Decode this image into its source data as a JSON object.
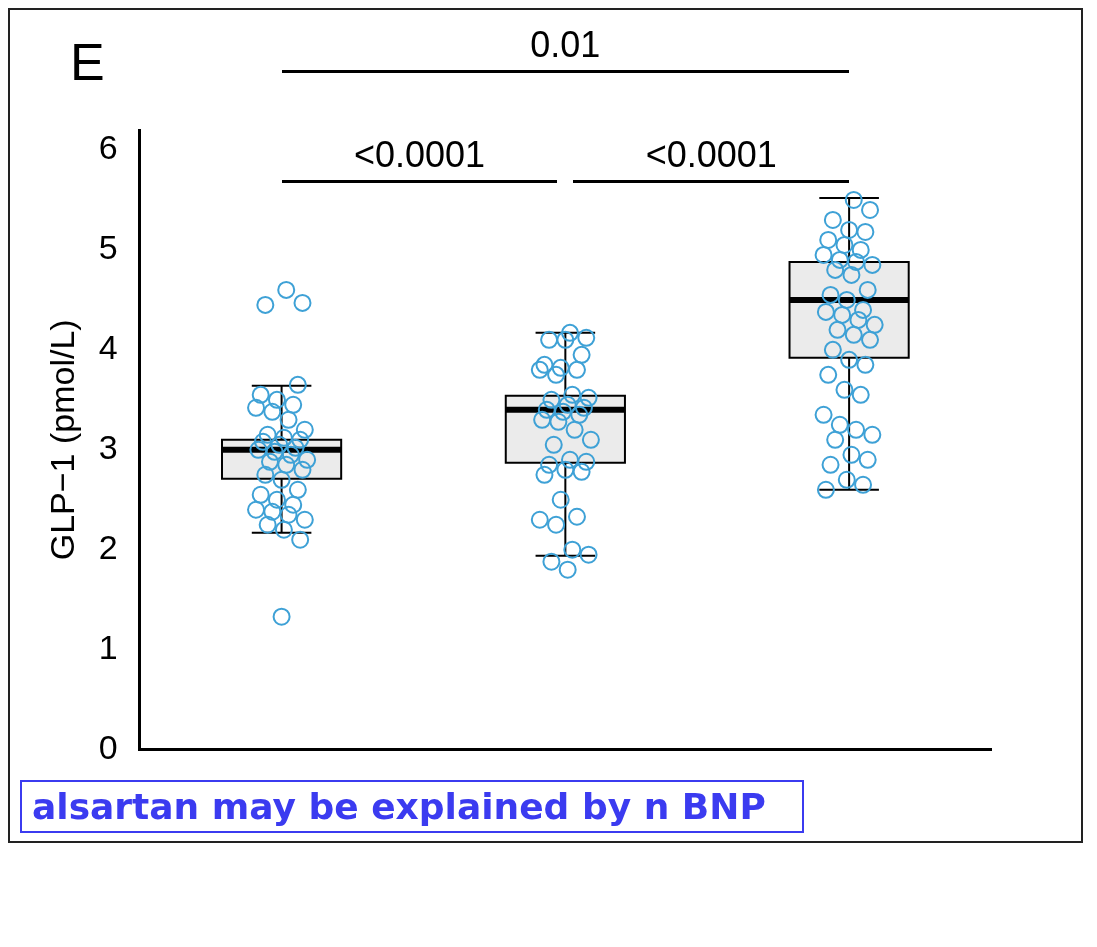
{
  "chart_data": {
    "type": "box",
    "title": "E",
    "ylabel": "GLP−1 (pmol/L)",
    "categories": [
      null,
      null,
      null
    ],
    "series": [
      {
        "color": "#ebebeb",
        "boxes": [
          {
            "low": 2.17,
            "q1": 2.71,
            "median": 3.0,
            "q3": 3.1,
            "high": 3.64,
            "outliers": [
              4.6,
              4.47,
              4.45,
              1.33,
              3.65,
              3.55,
              3.5,
              3.45,
              3.42,
              3.38,
              3.3,
              3.2,
              3.15,
              3.12,
              3.1,
              3.08,
              3.05,
              3.02,
              3.0,
              2.98,
              2.95,
              2.9,
              2.88,
              2.85,
              2.8,
              2.75,
              2.7,
              2.6,
              2.55,
              2.5,
              2.45,
              2.4,
              2.38,
              2.35,
              2.3,
              2.25,
              2.2,
              2.1
            ]
          },
          {
            "low": 1.94,
            "q1": 2.87,
            "median": 3.4,
            "q3": 3.54,
            "high": 4.17,
            "outliers": [
              4.17,
              4.12,
              4.1,
              4.1,
              3.95,
              3.85,
              3.82,
              3.8,
              3.8,
              3.75,
              3.55,
              3.52,
              3.5,
              3.45,
              3.42,
              3.4,
              3.38,
              3.35,
              3.3,
              3.28,
              3.2,
              3.1,
              3.05,
              2.9,
              2.88,
              2.85,
              2.8,
              2.78,
              2.75,
              2.5,
              2.33,
              2.3,
              2.25,
              2.0,
              1.95,
              1.88,
              1.8
            ]
          },
          {
            "low": 2.6,
            "q1": 3.92,
            "median": 4.5,
            "q3": 4.88,
            "high": 5.52,
            "outliers": [
              5.5,
              5.4,
              5.3,
              5.2,
              5.18,
              5.1,
              5.05,
              5.0,
              4.95,
              4.9,
              4.88,
              4.85,
              4.8,
              4.75,
              4.6,
              4.55,
              4.5,
              4.4,
              4.38,
              4.35,
              4.3,
              4.25,
              4.2,
              4.15,
              4.1,
              4.0,
              3.9,
              3.85,
              3.75,
              3.6,
              3.55,
              3.35,
              3.25,
              3.2,
              3.15,
              3.1,
              2.95,
              2.9,
              2.85,
              2.7,
              2.65,
              2.6
            ]
          }
        ]
      }
    ],
    "color": "#3ea1d6",
    "marker": "circle",
    "ylim": [
      0,
      6.2
    ],
    "yticks": [
      0,
      1,
      2,
      3,
      4,
      5,
      6
    ],
    "tick_labels": "y",
    "annotations": [
      "0.01",
      "<0.0001",
      "<0.0001",
      "alsartan may be explained by n BNP"
    ]
  }
}
